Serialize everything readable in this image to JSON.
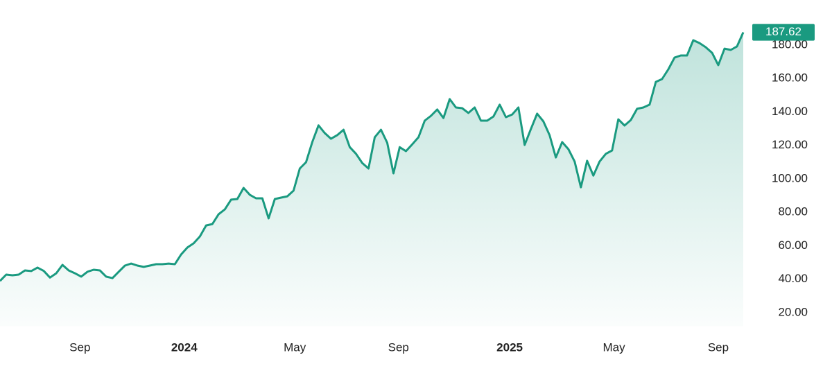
{
  "chart_data": {
    "type": "area-line",
    "series": [
      {
        "color": "#1a9a80",
        "values": [
          39,
          42.8,
          42.4,
          42.8,
          45.3,
          44.9,
          47,
          45,
          41,
          43.6,
          48.6,
          45.3,
          43.6,
          41.6,
          44.5,
          45.7,
          45.3,
          41.6,
          40.7,
          44.5,
          48.2,
          49.4,
          48.2,
          47.4,
          48.2,
          49,
          49,
          49.4,
          49,
          54.8,
          59,
          61.5,
          65.6,
          72.2,
          73,
          78.9,
          81.8,
          87.6,
          88,
          94.6,
          90.5,
          88.4,
          88.4,
          76.4,
          88,
          88.8,
          89.6,
          93,
          106.2,
          110,
          122,
          132,
          127.4,
          124,
          126.2,
          129.4,
          119,
          115,
          109.5,
          106.2,
          124.9,
          129.4,
          121.6,
          103.3,
          119,
          116.6,
          120.7,
          124.9,
          134.8,
          137.7,
          141.5,
          136.4,
          147.7,
          142.7,
          142.3,
          139.4,
          142.7,
          134.8,
          134.8,
          137.3,
          144.4,
          136.9,
          138.5,
          142.7,
          120.3,
          129.8,
          139,
          134.4,
          126.1,
          112.8,
          122,
          117.8,
          110.4,
          95,
          110.8,
          102,
          110.4,
          115,
          117,
          135.6,
          131.9,
          135.2,
          141.9,
          142.7,
          144.4,
          158,
          159.7,
          165.5,
          172.5,
          173.8,
          173.8,
          182.9,
          181.2,
          178.7,
          175.4,
          168,
          177.9,
          177.1,
          179.2,
          187.62
        ]
      }
    ],
    "xlim": [
      0,
      119
    ],
    "xticks": [
      {
        "value": 12.8,
        "label": "Sep"
      },
      {
        "value": 29.5,
        "label": "2024"
      },
      {
        "value": 47.2,
        "label": "May"
      },
      {
        "value": 63.8,
        "label": "Sep"
      },
      {
        "value": 81.6,
        "label": "2025"
      },
      {
        "value": 98.3,
        "label": "May"
      },
      {
        "value": 115,
        "label": "Sep"
      }
    ],
    "ylim": [
      12,
      200
    ],
    "yticks": [
      {
        "value": 20,
        "label": "20.00"
      },
      {
        "value": 40,
        "label": "40.00"
      },
      {
        "value": 60,
        "label": "60.00"
      },
      {
        "value": 80,
        "label": "80.00"
      },
      {
        "value": 100,
        "label": "100.00"
      },
      {
        "value": 120,
        "label": "120.00"
      },
      {
        "value": 140,
        "label": "140.00"
      },
      {
        "value": 160,
        "label": "160.00"
      },
      {
        "value": 180,
        "label": "180.00"
      }
    ],
    "grid": false
  }
}
